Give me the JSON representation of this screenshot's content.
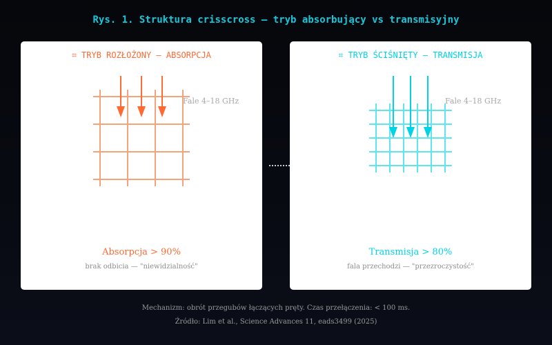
{
  "colors": {
    "absorption": "#ff6a33",
    "absorption_lines": "#f7a37a",
    "transmission": "#00d3e6",
    "transmission_lines": "#5ee6ef",
    "title": "#14c8dc"
  },
  "title": "Rys. 1. Struktura crisscross — tryb absorbujący vs transmisyjny",
  "panels": {
    "left": {
      "icon": "unfolded-grid-icon",
      "heading": "⌗ TRYB ROZŁOŻONY — ABSORPCJA",
      "freq_label": "Fale 4–18 GHz",
      "result": "Absorpcja > 90%",
      "result_sub": "brak odbicia — \"niewidzialność\""
    },
    "right": {
      "icon": "compressed-grid-icon",
      "heading": "⌗ TRYB ŚCIŚNIĘTY — TRANSMISJA",
      "freq_label": "Fale 4–18 GHz",
      "result": "Transmisja > 80%",
      "result_sub": "fala przechodzi — \"przezroczystość\""
    }
  },
  "footer": {
    "mechanism": "Mechanizm: obrót przegubów łączących pręty. Czas przełączenia: < 100 ms.",
    "source": "Źródło: Lim et al., Science Advances 11, eads3499 (2025)"
  }
}
